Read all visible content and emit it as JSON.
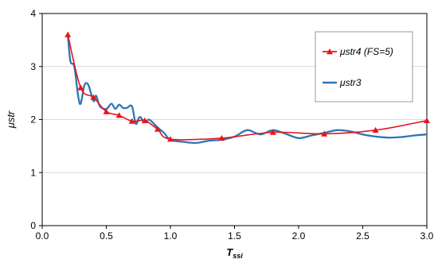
{
  "chart_data": {
    "type": "line",
    "xlabel": "Tssi",
    "xlabel_main": "T",
    "xlabel_sub": "ssi",
    "ylabel": "μstr",
    "xlim": [
      0.0,
      3.0
    ],
    "ylim": [
      0,
      4
    ],
    "xticks": [
      "0.0",
      "0.5",
      "1.0",
      "1.5",
      "2.0",
      "2.5",
      "3.0"
    ],
    "yticks": [
      "0",
      "1",
      "2",
      "3",
      "4"
    ],
    "grid": "horizontal-light",
    "legend_position": "top-right",
    "series": [
      {
        "name": "μstr4 (FS=5)",
        "color": "#e8141c",
        "marker": "triangle",
        "x": [
          0.2,
          0.3,
          0.4,
          0.5,
          0.6,
          0.7,
          0.8,
          0.9,
          1.0,
          1.4,
          1.8,
          2.2,
          2.6,
          3.0
        ],
        "y": [
          3.6,
          2.6,
          2.42,
          2.15,
          2.08,
          1.97,
          1.98,
          1.82,
          1.63,
          1.65,
          1.76,
          1.73,
          1.8,
          1.98
        ]
      },
      {
        "name": "μstr3",
        "color": "#2e75b6",
        "marker": "none",
        "x": [
          0.2,
          0.22,
          0.25,
          0.28,
          0.3,
          0.33,
          0.36,
          0.4,
          0.42,
          0.45,
          0.5,
          0.54,
          0.57,
          0.6,
          0.63,
          0.66,
          0.7,
          0.73,
          0.76,
          0.8,
          0.83,
          0.86,
          0.9,
          0.95,
          1.0,
          1.1,
          1.2,
          1.3,
          1.4,
          1.5,
          1.6,
          1.7,
          1.8,
          1.9,
          2.0,
          2.1,
          2.2,
          2.3,
          2.4,
          2.5,
          2.6,
          2.7,
          2.8,
          2.9,
          3.0
        ],
        "y": [
          3.6,
          3.1,
          3.0,
          2.45,
          2.3,
          2.65,
          2.65,
          2.35,
          2.45,
          2.25,
          2.2,
          2.3,
          2.2,
          2.28,
          2.22,
          2.22,
          2.25,
          1.92,
          2.05,
          1.95,
          2.0,
          1.95,
          1.85,
          1.75,
          1.62,
          1.58,
          1.56,
          1.6,
          1.62,
          1.68,
          1.8,
          1.72,
          1.8,
          1.73,
          1.65,
          1.7,
          1.75,
          1.8,
          1.78,
          1.72,
          1.68,
          1.66,
          1.67,
          1.7,
          1.72
        ]
      }
    ]
  }
}
